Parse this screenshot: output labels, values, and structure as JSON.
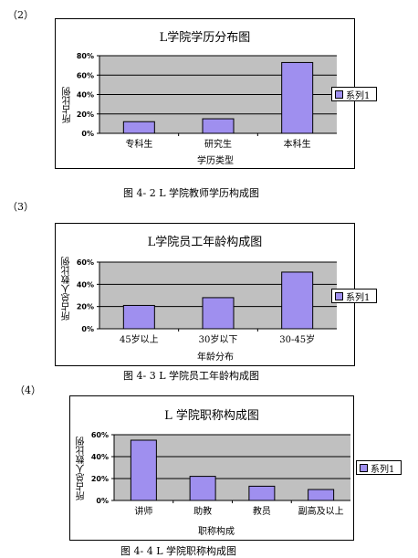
{
  "sections": [
    {
      "number": "（2）",
      "caption": "图 4- 2 L 学院教师学历构成图"
    },
    {
      "number": "（3）",
      "caption": "图 4- 3 L 学院员工年龄构成图"
    },
    {
      "number": "（4）",
      "caption": "图 4- 4 L 学院职称构成图"
    }
  ],
  "chart_data": [
    {
      "type": "bar",
      "title": "L学院学历分布图",
      "xlabel": "学历类型",
      "ylabel": "所占比例",
      "categories": [
        "专科生",
        "研究生",
        "本科生"
      ],
      "series": [
        {
          "name": "系列1",
          "values": [
            12,
            15,
            73
          ]
        }
      ],
      "ylim": [
        0,
        80
      ],
      "yticks": [
        "0%",
        "20%",
        "40%",
        "60%",
        "80%"
      ],
      "grid": true,
      "legend": "right",
      "colors": {
        "bar": "#9f8fef",
        "plot_bg": "#c0c0c0"
      }
    },
    {
      "type": "bar",
      "title": "L学院员工年龄构成图",
      "xlabel": "年龄分布",
      "ylabel": "所占总人数比例",
      "categories": [
        "45岁以上",
        "30岁以下",
        "30-45岁"
      ],
      "series": [
        {
          "name": "系列1",
          "values": [
            21,
            28,
            51
          ]
        }
      ],
      "ylim": [
        0,
        60
      ],
      "yticks": [
        "0%",
        "20%",
        "40%",
        "60%"
      ],
      "grid": true,
      "legend": "right",
      "colors": {
        "bar": "#9f8fef",
        "plot_bg": "#c0c0c0"
      }
    },
    {
      "type": "bar",
      "title": "L 学院职称构成图",
      "xlabel": "职称构成",
      "ylabel": "所占总人数比例",
      "categories": [
        "讲师",
        "助教",
        "教员",
        "副高及以上"
      ],
      "series": [
        {
          "name": "系列1",
          "values": [
            55,
            22,
            13,
            10
          ]
        }
      ],
      "ylim": [
        0,
        60
      ],
      "yticks": [
        "0%",
        "20%",
        "40%",
        "60%"
      ],
      "grid": true,
      "legend": "right",
      "colors": {
        "bar": "#9f8fef",
        "plot_bg": "#c0c0c0"
      }
    }
  ]
}
